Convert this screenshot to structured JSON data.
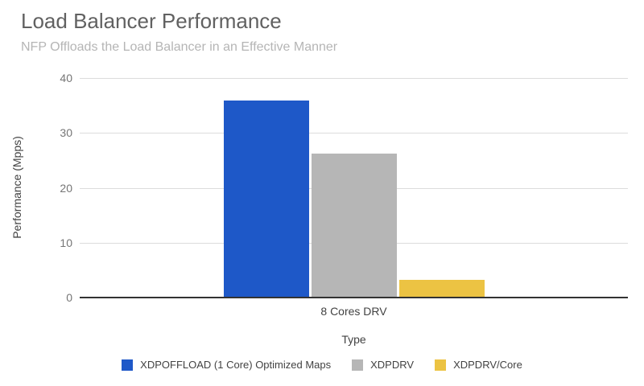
{
  "chart_data": {
    "type": "bar",
    "title": "Load Balancer Performance",
    "subtitle": "NFP Offloads the Load Balancer in an Effective Manner",
    "categories": [
      "8 Cores DRV"
    ],
    "series": [
      {
        "name": "XDPOFFLOAD (1 Core) Optimized Maps",
        "values": [
          35.9
        ],
        "color": "#1e58c8"
      },
      {
        "name": "XDPDRV",
        "values": [
          26.2
        ],
        "color": "#b6b6b6"
      },
      {
        "name": "XDPDRV/Core",
        "values": [
          3.2
        ],
        "color": "#ecc343"
      }
    ],
    "xlabel": "Type",
    "ylabel": "Performance (Mpps)",
    "ylim": [
      0,
      40
    ],
    "yticks": [
      0,
      10,
      20,
      30,
      40
    ],
    "grid": true,
    "legend_position": "bottom"
  },
  "theme": {
    "background": "#ffffff",
    "title_color": "#616161",
    "subtitle_color": "#b5b5b5",
    "tick_label_color": "#757575",
    "axis_title_color": "#424242",
    "gridline_color": "#dcdcdc",
    "baseline_color": "#333333"
  }
}
